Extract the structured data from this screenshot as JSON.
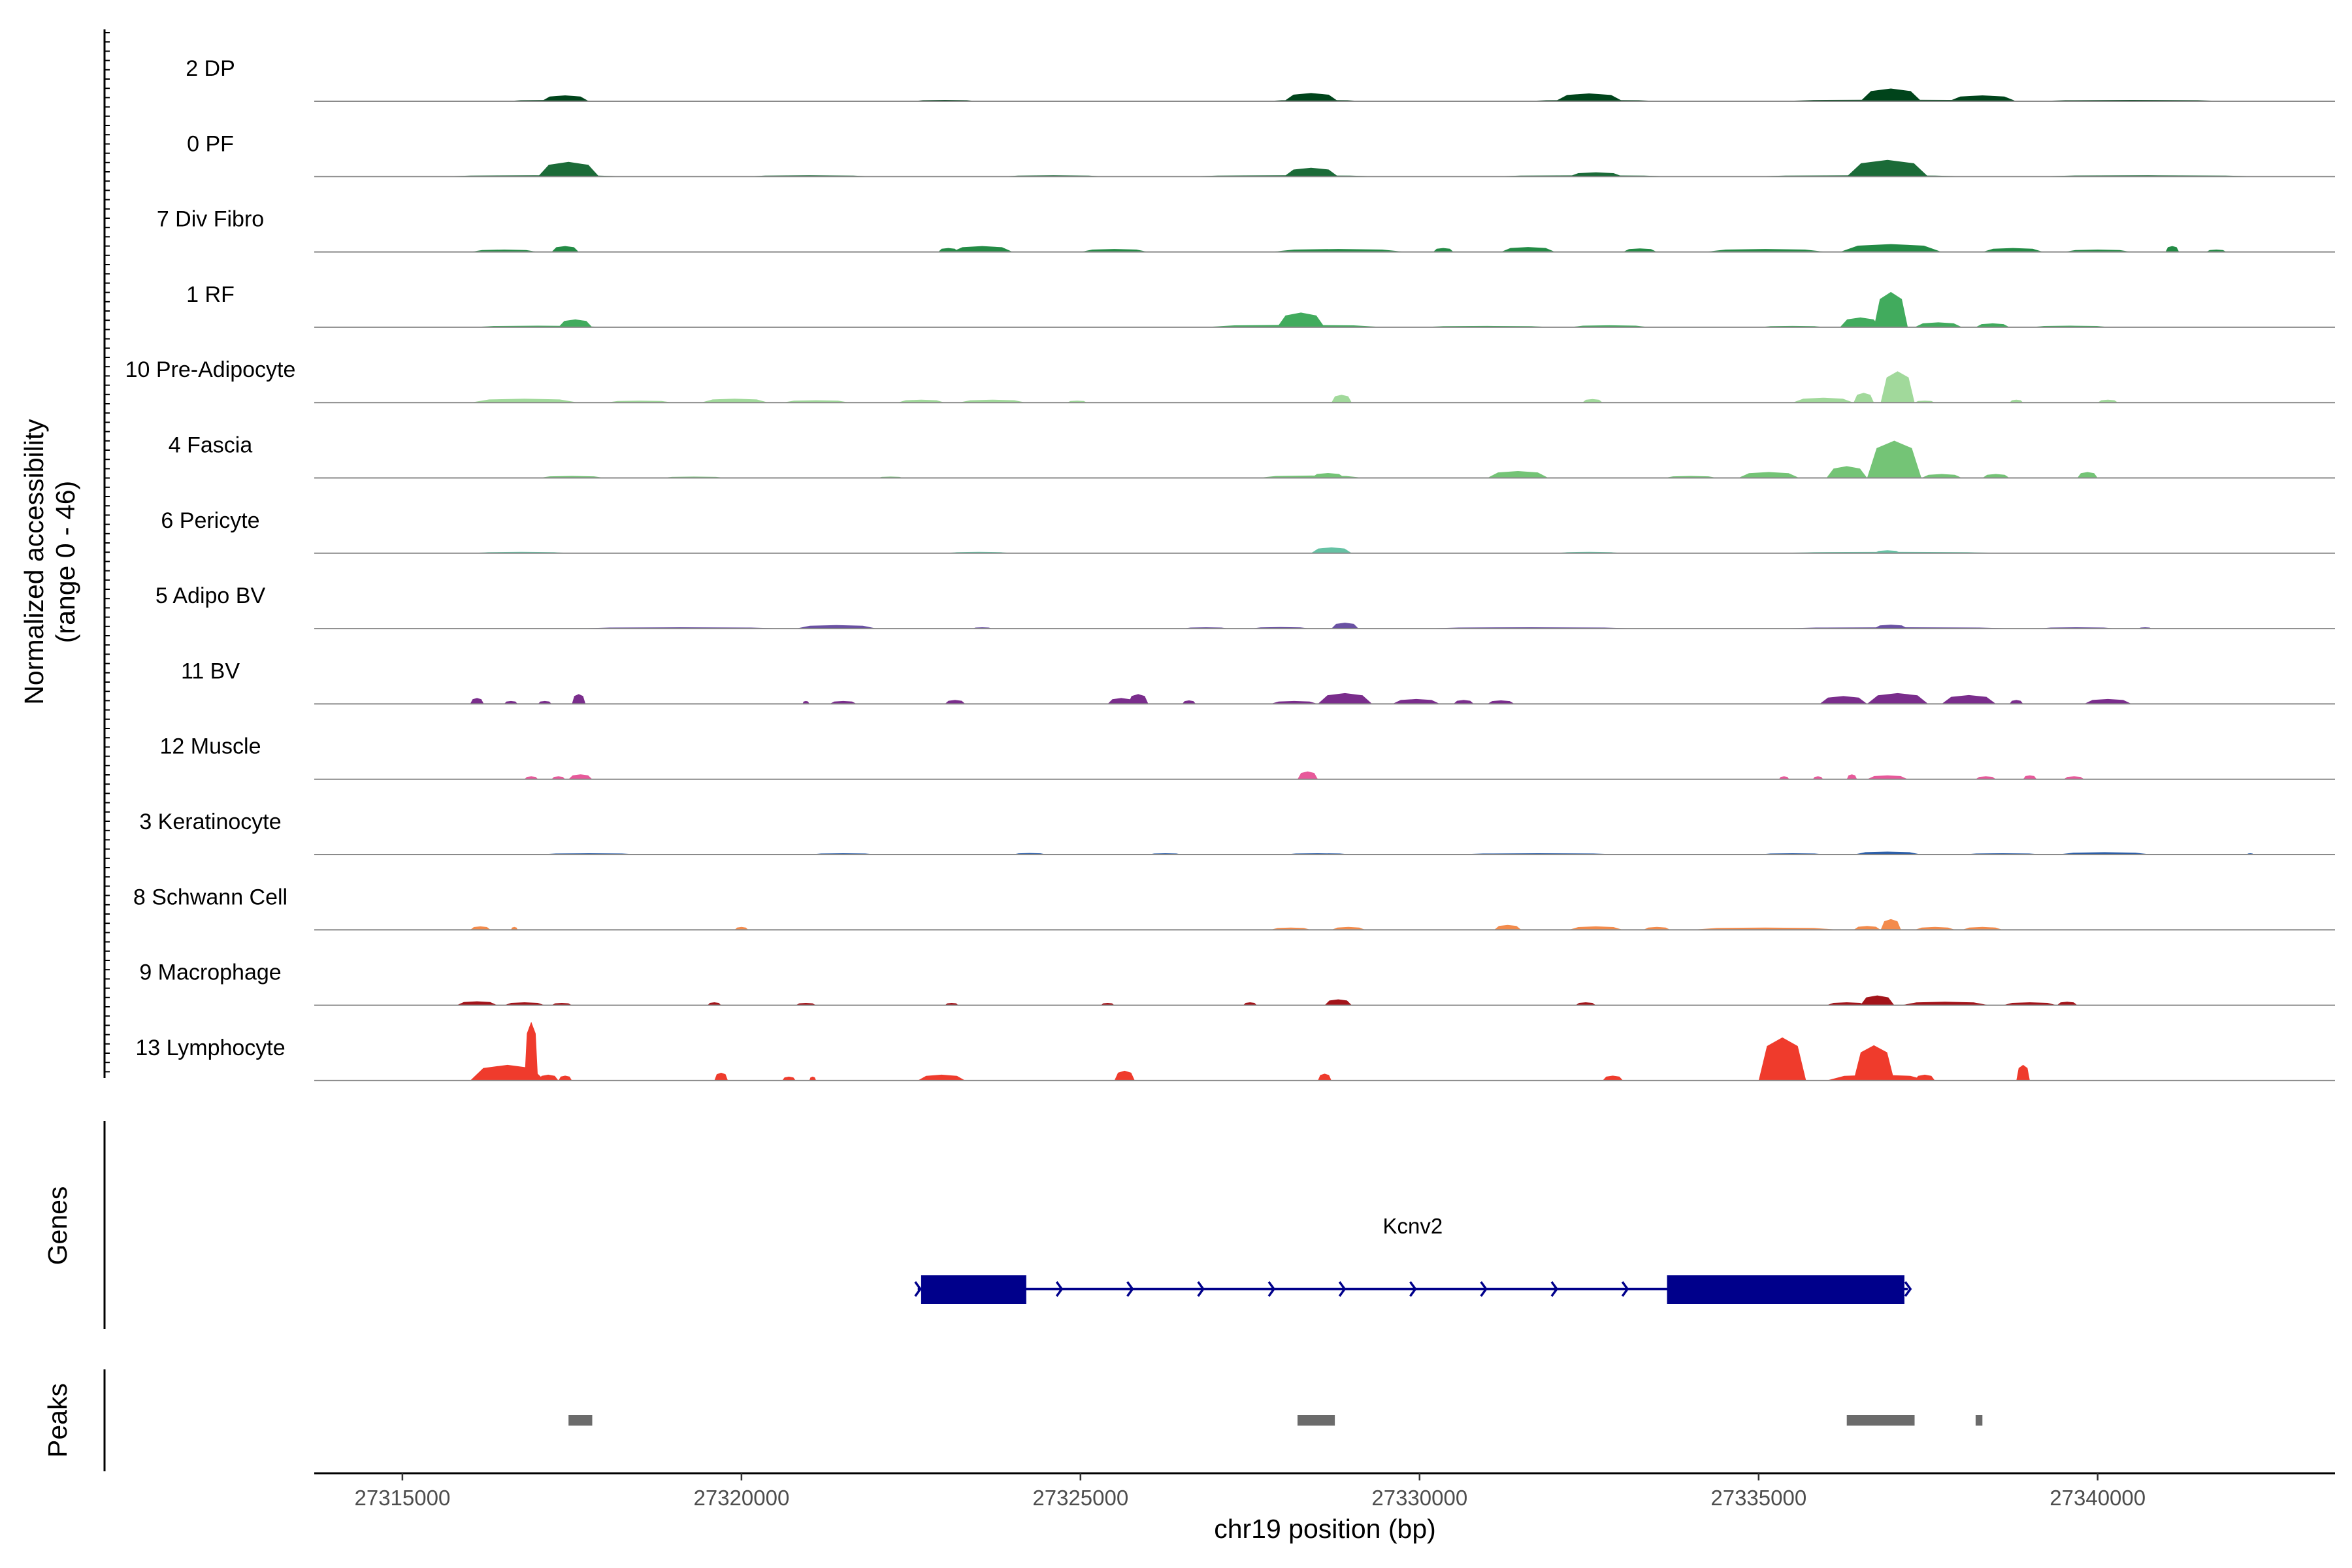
{
  "chart_data": {
    "type": "area",
    "title": "",
    "chromosome": "chr19",
    "xlabel": "chr19 position (bp)",
    "ylabel_line1": "Normalized accessibility",
    "ylabel_line2": "(range 0 - 46)",
    "y_range": [
      0,
      46
    ],
    "x_range": [
      27313700,
      27343500
    ],
    "x_ticks": [
      27315000,
      27320000,
      27325000,
      27330000,
      27335000,
      27340000
    ],
    "track_labels": {
      "genes": "Genes",
      "peaks": "Peaks"
    },
    "series": [
      {
        "name": "2 DP",
        "color": "#00441b",
        "regions": [
          [
            27316500,
            27317900,
            0.4
          ],
          [
            27317050,
            27317750,
            3.0
          ],
          [
            27322500,
            27323500,
            0.4
          ],
          [
            27327700,
            27329200,
            0.5
          ],
          [
            27328000,
            27328800,
            4.2
          ],
          [
            27331500,
            27333600,
            0.6
          ],
          [
            27332000,
            27333000,
            4.0
          ],
          [
            27335200,
            27338700,
            0.8
          ],
          [
            27336500,
            27337400,
            6.5
          ],
          [
            27337800,
            27338800,
            3.0
          ],
          [
            27339000,
            27342000,
            0.4
          ]
        ]
      },
      {
        "name": "0 PF",
        "color": "#1b6b38",
        "regions": [
          [
            27315500,
            27318400,
            0.3
          ],
          [
            27317000,
            27317900,
            7.5
          ],
          [
            27320000,
            27322000,
            0.3
          ],
          [
            27323800,
            27325400,
            0.3
          ],
          [
            27326500,
            27329500,
            0.4
          ],
          [
            27328000,
            27328800,
            4.5
          ],
          [
            27331000,
            27333800,
            0.4
          ],
          [
            27332200,
            27333000,
            2.2
          ],
          [
            27334800,
            27338200,
            0.5
          ],
          [
            27336300,
            27337500,
            8.5
          ],
          [
            27339000,
            27342500,
            0.3
          ]
        ]
      },
      {
        "name": "7 Div Fibro",
        "color": "#238b45",
        "regions": [
          [
            27316000,
            27317000,
            1.2
          ],
          [
            27317200,
            27317600,
            3.0
          ],
          [
            27322900,
            27323200,
            2.0
          ],
          [
            27323100,
            27324000,
            3.0
          ],
          [
            27325000,
            27326000,
            1.5
          ],
          [
            27327800,
            27329800,
            1.5
          ],
          [
            27330200,
            27330500,
            2.0
          ],
          [
            27331200,
            27332000,
            2.5
          ],
          [
            27333000,
            27333500,
            1.8
          ],
          [
            27334200,
            27336000,
            1.5
          ],
          [
            27336200,
            27337700,
            4.0
          ],
          [
            27338300,
            27339200,
            2.0
          ],
          [
            27339500,
            27340500,
            1.2
          ],
          [
            27341000,
            27341200,
            3.0
          ],
          [
            27341600,
            27341900,
            1.2
          ]
        ]
      },
      {
        "name": "1 RF",
        "color": "#41ab5d",
        "regions": [
          [
            27316000,
            27318000,
            0.8
          ],
          [
            27317300,
            27317800,
            4.0
          ],
          [
            27326800,
            27329500,
            1.2
          ],
          [
            27327900,
            27328600,
            7.5
          ],
          [
            27330000,
            27332000,
            0.6
          ],
          [
            27332200,
            27333400,
            1.0
          ],
          [
            27335000,
            27336000,
            0.6
          ],
          [
            27336200,
            27336800,
            5.0
          ],
          [
            27336700,
            27337200,
            18.0
          ],
          [
            27337300,
            27338000,
            2.5
          ],
          [
            27338200,
            27338700,
            2.0
          ],
          [
            27339000,
            27340200,
            0.8
          ]
        ]
      },
      {
        "name": "10 Pre-Adipocyte",
        "color": "#a1d99b",
        "regions": [
          [
            27316000,
            27317600,
            2.0
          ],
          [
            27318000,
            27319000,
            1.0
          ],
          [
            27319400,
            27320400,
            2.0
          ],
          [
            27320600,
            27321600,
            1.2
          ],
          [
            27322300,
            27323000,
            1.5
          ],
          [
            27323200,
            27324200,
            1.5
          ],
          [
            27324800,
            27325100,
            1.0
          ],
          [
            27328700,
            27329000,
            4.0
          ],
          [
            27332400,
            27332700,
            1.8
          ],
          [
            27335500,
            27336400,
            2.5
          ],
          [
            27336400,
            27336700,
            5.0
          ],
          [
            27336800,
            27337300,
            16.0
          ],
          [
            27337300,
            27337600,
            1.0
          ],
          [
            27338700,
            27338900,
            1.5
          ],
          [
            27340000,
            27340300,
            1.5
          ]
        ]
      },
      {
        "name": "4 Fascia",
        "color": "#74c476",
        "regions": [
          [
            27317000,
            27318000,
            1.0
          ],
          [
            27318800,
            27319800,
            0.6
          ],
          [
            27322000,
            27322400,
            0.6
          ],
          [
            27327600,
            27329200,
            1.2
          ],
          [
            27328400,
            27328900,
            2.5
          ],
          [
            27331000,
            27331900,
            3.5
          ],
          [
            27333600,
            27334400,
            1.0
          ],
          [
            27334700,
            27335600,
            3.0
          ],
          [
            27336000,
            27336600,
            6.0
          ],
          [
            27336600,
            27337400,
            19.0
          ],
          [
            27337400,
            27338000,
            2.0
          ],
          [
            27338300,
            27338700,
            2.0
          ],
          [
            27339700,
            27340000,
            3.0
          ]
        ]
      },
      {
        "name": "6 Pericyte",
        "color": "#66c2a4",
        "regions": [
          [
            27316000,
            27317500,
            0.3
          ],
          [
            27323000,
            27324000,
            0.2
          ],
          [
            27328400,
            27329000,
            3.0
          ],
          [
            27332000,
            27333000,
            0.2
          ],
          [
            27335200,
            27338700,
            0.3
          ],
          [
            27336700,
            27337100,
            1.5
          ]
        ]
      },
      {
        "name": "5 Adipo BV",
        "color": "#6a51a3",
        "regions": [
          [
            27317500,
            27320700,
            0.3
          ],
          [
            27320800,
            27322000,
            1.8
          ],
          [
            27323400,
            27323700,
            0.6
          ],
          [
            27326500,
            27327200,
            0.6
          ],
          [
            27327500,
            27328400,
            0.8
          ],
          [
            27328700,
            27329100,
            3.0
          ],
          [
            27330000,
            27333300,
            0.3
          ],
          [
            27335200,
            27338900,
            0.5
          ],
          [
            27336700,
            27337200,
            2.0
          ],
          [
            27339100,
            27340300,
            0.4
          ],
          [
            27340600,
            27340800,
            0.4
          ]
        ]
      },
      {
        "name": "11 BV",
        "color": "#7a2d8c",
        "regions": [
          [
            27316000,
            27316200,
            3.0
          ],
          [
            27316500,
            27316700,
            1.5
          ],
          [
            27317000,
            27317200,
            1.5
          ],
          [
            27317500,
            27317700,
            5.0
          ],
          [
            27320900,
            27321000,
            1.5
          ],
          [
            27321300,
            27321700,
            1.5
          ],
          [
            27323000,
            27323300,
            2.0
          ],
          [
            27325400,
            27325800,
            3.0
          ],
          [
            27325700,
            27326000,
            5.0
          ],
          [
            27326500,
            27326700,
            1.8
          ],
          [
            27327800,
            27328500,
            1.5
          ],
          [
            27328500,
            27329300,
            5.5
          ],
          [
            27329600,
            27330300,
            2.5
          ],
          [
            27330500,
            27330800,
            2.0
          ],
          [
            27331000,
            27331400,
            1.8
          ],
          [
            27335900,
            27336600,
            4.0
          ],
          [
            27336600,
            27337500,
            5.5
          ],
          [
            27337700,
            27338500,
            4.5
          ],
          [
            27338700,
            27338900,
            2.0
          ],
          [
            27339800,
            27340500,
            2.5
          ]
        ]
      },
      {
        "name": "12 Muscle",
        "color": "#e7599a",
        "regions": [
          [
            27316800,
            27317000,
            1.5
          ],
          [
            27317200,
            27317400,
            1.5
          ],
          [
            27317450,
            27317800,
            2.5
          ],
          [
            27328200,
            27328500,
            4.0
          ],
          [
            27335300,
            27335450,
            1.5
          ],
          [
            27335800,
            27335950,
            1.5
          ],
          [
            27336300,
            27336450,
            2.5
          ],
          [
            27336600,
            27337200,
            2.0
          ],
          [
            27338200,
            27338500,
            1.5
          ],
          [
            27338900,
            27339100,
            2.0
          ],
          [
            27339500,
            27339800,
            1.5
          ]
        ]
      },
      {
        "name": "3 Keratinocyte",
        "color": "#2d5fa8",
        "regions": [
          [
            27317000,
            27318500,
            0.4
          ],
          [
            27321000,
            27322000,
            0.3
          ],
          [
            27324000,
            27324500,
            0.8
          ],
          [
            27326000,
            27326500,
            0.3
          ],
          [
            27328000,
            27329000,
            0.3
          ],
          [
            27330500,
            27333000,
            0.6
          ],
          [
            27335000,
            27336000,
            0.5
          ],
          [
            27336400,
            27337400,
            1.5
          ],
          [
            27338000,
            27339200,
            0.6
          ],
          [
            27339400,
            27340800,
            1.2
          ],
          [
            27342200,
            27342300,
            0.3
          ]
        ]
      },
      {
        "name": "8 Schwann Cell",
        "color": "#f38b4c",
        "regions": [
          [
            27316000,
            27316300,
            1.8
          ],
          [
            27316600,
            27316700,
            1.5
          ],
          [
            27319900,
            27320100,
            1.5
          ],
          [
            27327800,
            27328400,
            1.2
          ],
          [
            27328700,
            27329200,
            1.5
          ],
          [
            27331100,
            27331500,
            2.5
          ],
          [
            27332200,
            27333000,
            1.8
          ],
          [
            27333300,
            27333700,
            1.5
          ],
          [
            27334000,
            27336200,
            1.2
          ],
          [
            27336400,
            27336800,
            2.0
          ],
          [
            27336800,
            27337100,
            5.5
          ],
          [
            27337300,
            27337900,
            1.5
          ],
          [
            27338000,
            27338600,
            1.5
          ]
        ]
      },
      {
        "name": "9 Macrophage",
        "color": "#a3141a",
        "regions": [
          [
            27315800,
            27316400,
            2.0
          ],
          [
            27316500,
            27317100,
            1.5
          ],
          [
            27317200,
            27317500,
            1.2
          ],
          [
            27319500,
            27319700,
            1.5
          ],
          [
            27320800,
            27321100,
            1.2
          ],
          [
            27323000,
            27323200,
            1.2
          ],
          [
            27325300,
            27325500,
            1.2
          ],
          [
            27327400,
            27327600,
            1.5
          ],
          [
            27328600,
            27329000,
            3.0
          ],
          [
            27332300,
            27332600,
            1.5
          ],
          [
            27336000,
            27336600,
            1.5
          ],
          [
            27336500,
            27337000,
            5.0
          ],
          [
            27337100,
            27338400,
            1.8
          ],
          [
            27338600,
            27339400,
            1.5
          ],
          [
            27339400,
            27339700,
            1.8
          ]
        ]
      },
      {
        "name": "13 Lymphocyte",
        "color": "#ef3b2c",
        "regions": [
          [
            27316000,
            27317100,
            8.0
          ],
          [
            27316800,
            27317000,
            30.0
          ],
          [
            27317000,
            27317300,
            3.0
          ],
          [
            27317300,
            27317500,
            2.5
          ],
          [
            27319600,
            27319800,
            4.0
          ],
          [
            27320600,
            27320800,
            2.0
          ],
          [
            27321000,
            27321100,
            2.0
          ],
          [
            27322600,
            27323300,
            3.0
          ],
          [
            27325500,
            27325800,
            5.0
          ],
          [
            27328500,
            27328700,
            3.5
          ],
          [
            27332700,
            27333000,
            2.5
          ],
          [
            27335000,
            27335700,
            22.0
          ],
          [
            27336400,
            27337000,
            18.0
          ],
          [
            27336000,
            27337500,
            3.0
          ],
          [
            27337300,
            27337600,
            3.0
          ],
          [
            27338800,
            27339000,
            8.0
          ]
        ]
      }
    ],
    "gene": {
      "name": "Kcnv2",
      "start": 27322600,
      "end": 27337200,
      "strand": "+",
      "exons": [
        [
          27322650,
          27324200
        ],
        [
          27333650,
          27337150
        ]
      ]
    },
    "peaks": [
      [
        27317450,
        27317800
      ],
      [
        27328200,
        27328750
      ],
      [
        27336300,
        27337300
      ],
      [
        27338200,
        27338300
      ]
    ]
  }
}
